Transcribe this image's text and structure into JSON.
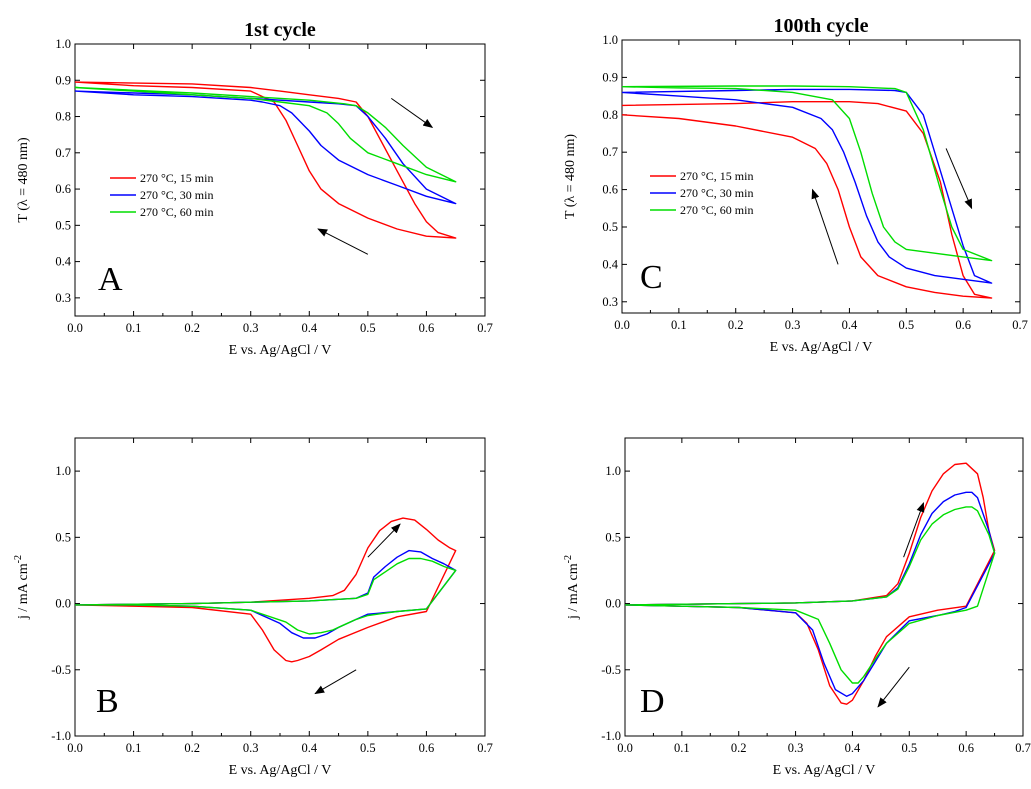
{
  "chart_data": [
    {
      "id": "A",
      "type": "line",
      "title": "1st cycle",
      "panel_label": "A",
      "xlabel": "E vs. Ag/AgCl / V",
      "ylabel": "T (λ = 480 nm)",
      "xlim": [
        0.0,
        0.7
      ],
      "ylim": [
        0.25,
        1.0
      ],
      "xticks": [
        "0.0",
        "0.1",
        "0.2",
        "0.3",
        "0.4",
        "0.5",
        "0.6",
        "0.7"
      ],
      "yticks": [
        "0.3",
        "0.4",
        "0.5",
        "0.6",
        "0.7",
        "0.8",
        "0.9",
        "1.0"
      ],
      "legend_position": "middle-left",
      "series": [
        {
          "name": "270 °C, 15 min",
          "color": "#ff0000",
          "x": [
            0.0,
            0.2,
            0.3,
            0.35,
            0.4,
            0.45,
            0.48,
            0.5,
            0.52,
            0.55,
            0.58,
            0.6,
            0.62,
            0.65,
            0.6,
            0.55,
            0.5,
            0.45,
            0.42,
            0.4,
            0.38,
            0.36,
            0.34,
            0.3,
            0.2,
            0.1,
            0.0
          ],
          "y": [
            0.895,
            0.89,
            0.88,
            0.87,
            0.86,
            0.85,
            0.84,
            0.8,
            0.74,
            0.65,
            0.56,
            0.51,
            0.48,
            0.465,
            0.47,
            0.49,
            0.52,
            0.56,
            0.6,
            0.65,
            0.72,
            0.79,
            0.84,
            0.87,
            0.88,
            0.885,
            0.895
          ]
        },
        {
          "name": "270 °C, 30 min",
          "color": "#0000ff",
          "x": [
            0.0,
            0.2,
            0.3,
            0.4,
            0.45,
            0.48,
            0.5,
            0.53,
            0.56,
            0.6,
            0.65,
            0.6,
            0.55,
            0.5,
            0.45,
            0.42,
            0.4,
            0.37,
            0.35,
            0.32,
            0.3,
            0.2,
            0.1,
            0.0
          ],
          "y": [
            0.87,
            0.86,
            0.85,
            0.84,
            0.835,
            0.83,
            0.8,
            0.74,
            0.67,
            0.6,
            0.56,
            0.58,
            0.61,
            0.64,
            0.68,
            0.72,
            0.76,
            0.81,
            0.83,
            0.84,
            0.845,
            0.855,
            0.86,
            0.87
          ]
        },
        {
          "name": "270 °C, 60 min",
          "color": "#00dd00",
          "x": [
            0.0,
            0.2,
            0.3,
            0.4,
            0.46,
            0.48,
            0.5,
            0.53,
            0.56,
            0.6,
            0.65,
            0.6,
            0.55,
            0.5,
            0.47,
            0.45,
            0.43,
            0.4,
            0.35,
            0.3,
            0.2,
            0.1,
            0.0
          ],
          "y": [
            0.88,
            0.865,
            0.855,
            0.845,
            0.835,
            0.83,
            0.81,
            0.77,
            0.72,
            0.66,
            0.62,
            0.64,
            0.67,
            0.7,
            0.74,
            0.78,
            0.81,
            0.83,
            0.84,
            0.85,
            0.86,
            0.87,
            0.88
          ]
        }
      ],
      "arrows": [
        {
          "from": [
            0.54,
            0.85
          ],
          "to": [
            0.61,
            0.77
          ]
        },
        {
          "from": [
            0.5,
            0.42
          ],
          "to": [
            0.415,
            0.49
          ]
        }
      ]
    },
    {
      "id": "C",
      "type": "line",
      "title": "100th cycle",
      "panel_label": "C",
      "xlabel": "E vs. Ag/AgCl / V",
      "ylabel": "T (λ = 480 nm)",
      "xlim": [
        0.0,
        0.7
      ],
      "ylim": [
        0.27,
        1.0
      ],
      "xticks": [
        "0.0",
        "0.1",
        "0.2",
        "0.3",
        "0.4",
        "0.5",
        "0.6",
        "0.7"
      ],
      "yticks": [
        "0.3",
        "0.4",
        "0.5",
        "0.6",
        "0.7",
        "0.8",
        "0.9",
        "1.0"
      ],
      "legend_position": "middle-left",
      "series": [
        {
          "name": "270 °C, 15 min",
          "color": "#ff0000",
          "x": [
            0.0,
            0.2,
            0.3,
            0.4,
            0.45,
            0.5,
            0.53,
            0.56,
            0.58,
            0.6,
            0.62,
            0.65,
            0.6,
            0.55,
            0.5,
            0.45,
            0.42,
            0.4,
            0.38,
            0.36,
            0.34,
            0.3,
            0.2,
            0.1,
            0.0
          ],
          "y": [
            0.825,
            0.83,
            0.835,
            0.835,
            0.83,
            0.81,
            0.75,
            0.62,
            0.48,
            0.37,
            0.32,
            0.31,
            0.315,
            0.325,
            0.34,
            0.37,
            0.42,
            0.5,
            0.6,
            0.67,
            0.71,
            0.74,
            0.77,
            0.79,
            0.8
          ]
        },
        {
          "name": "270 °C, 30 min",
          "color": "#0000ff",
          "x": [
            0.0,
            0.2,
            0.3,
            0.4,
            0.48,
            0.5,
            0.53,
            0.56,
            0.6,
            0.62,
            0.65,
            0.6,
            0.55,
            0.5,
            0.47,
            0.45,
            0.43,
            0.41,
            0.39,
            0.37,
            0.35,
            0.3,
            0.2,
            0.1,
            0.0
          ],
          "y": [
            0.86,
            0.865,
            0.868,
            0.868,
            0.865,
            0.86,
            0.8,
            0.65,
            0.45,
            0.37,
            0.35,
            0.36,
            0.37,
            0.39,
            0.42,
            0.46,
            0.53,
            0.62,
            0.7,
            0.76,
            0.79,
            0.82,
            0.84,
            0.85,
            0.86
          ]
        },
        {
          "name": "270 °C, 60 min",
          "color": "#00dd00",
          "x": [
            0.0,
            0.2,
            0.3,
            0.4,
            0.48,
            0.5,
            0.53,
            0.56,
            0.58,
            0.6,
            0.65,
            0.6,
            0.55,
            0.5,
            0.48,
            0.46,
            0.44,
            0.42,
            0.4,
            0.37,
            0.3,
            0.2,
            0.1,
            0.0
          ],
          "y": [
            0.875,
            0.877,
            0.877,
            0.875,
            0.87,
            0.86,
            0.76,
            0.6,
            0.5,
            0.44,
            0.41,
            0.42,
            0.43,
            0.44,
            0.46,
            0.5,
            0.59,
            0.7,
            0.79,
            0.84,
            0.86,
            0.87,
            0.872,
            0.875
          ]
        }
      ],
      "arrows": [
        {
          "from": [
            0.38,
            0.4
          ],
          "to": [
            0.335,
            0.6
          ]
        },
        {
          "from": [
            0.57,
            0.71
          ],
          "to": [
            0.615,
            0.55
          ]
        }
      ]
    },
    {
      "id": "B",
      "type": "line",
      "title": "",
      "panel_label": "B",
      "xlabel": "E vs. Ag/AgCl / V",
      "ylabel": "j / mA cm-2",
      "xlim": [
        0.0,
        0.7
      ],
      "ylim": [
        -1.0,
        1.25
      ],
      "xticks": [
        "0.0",
        "0.1",
        "0.2",
        "0.3",
        "0.4",
        "0.5",
        "0.6",
        "0.7"
      ],
      "yticks": [
        "-1.0",
        "-0.5",
        "0.0",
        "0.5",
        "1.0"
      ],
      "series": [
        {
          "name": "270 °C, 15 min",
          "color": "#ff0000",
          "x": [
            0.0,
            0.2,
            0.3,
            0.4,
            0.44,
            0.46,
            0.48,
            0.5,
            0.52,
            0.54,
            0.56,
            0.58,
            0.6,
            0.62,
            0.64,
            0.65,
            0.6,
            0.55,
            0.5,
            0.45,
            0.42,
            0.4,
            0.38,
            0.37,
            0.36,
            0.34,
            0.32,
            0.3,
            0.2,
            0.1,
            0.0
          ],
          "y": [
            -0.01,
            0.0,
            0.01,
            0.04,
            0.06,
            0.1,
            0.22,
            0.42,
            0.55,
            0.62,
            0.645,
            0.63,
            0.56,
            0.48,
            0.42,
            0.4,
            -0.06,
            -0.1,
            -0.18,
            -0.27,
            -0.35,
            -0.4,
            -0.43,
            -0.44,
            -0.43,
            -0.35,
            -0.2,
            -0.08,
            -0.03,
            -0.02,
            -0.01
          ]
        },
        {
          "name": "270 °C, 30 min",
          "color": "#0000ff",
          "x": [
            0.0,
            0.2,
            0.3,
            0.4,
            0.48,
            0.5,
            0.51,
            0.53,
            0.55,
            0.57,
            0.59,
            0.61,
            0.63,
            0.65,
            0.6,
            0.55,
            0.5,
            0.48,
            0.45,
            0.43,
            0.41,
            0.39,
            0.37,
            0.35,
            0.3,
            0.2,
            0.1,
            0.0
          ],
          "y": [
            -0.01,
            0.0,
            0.01,
            0.02,
            0.04,
            0.08,
            0.2,
            0.28,
            0.35,
            0.4,
            0.39,
            0.34,
            0.3,
            0.25,
            -0.04,
            -0.06,
            -0.08,
            -0.12,
            -0.18,
            -0.23,
            -0.26,
            -0.26,
            -0.22,
            -0.15,
            -0.05,
            -0.02,
            -0.01,
            -0.01
          ]
        },
        {
          "name": "270 °C, 60 min",
          "color": "#00dd00",
          "x": [
            0.0,
            0.2,
            0.3,
            0.4,
            0.48,
            0.5,
            0.51,
            0.53,
            0.55,
            0.57,
            0.59,
            0.61,
            0.63,
            0.65,
            0.6,
            0.55,
            0.5,
            0.48,
            0.46,
            0.44,
            0.42,
            0.4,
            0.38,
            0.36,
            0.3,
            0.2,
            0.1,
            0.0
          ],
          "y": [
            -0.01,
            0.0,
            0.01,
            0.02,
            0.04,
            0.07,
            0.18,
            0.24,
            0.3,
            0.34,
            0.34,
            0.32,
            0.28,
            0.25,
            -0.04,
            -0.06,
            -0.09,
            -0.12,
            -0.16,
            -0.2,
            -0.22,
            -0.23,
            -0.2,
            -0.14,
            -0.05,
            -0.02,
            -0.01,
            -0.01
          ]
        }
      ],
      "arrows": [
        {
          "from": [
            0.5,
            0.35
          ],
          "to": [
            0.555,
            0.6
          ]
        },
        {
          "from": [
            0.48,
            -0.5
          ],
          "to": [
            0.41,
            -0.68
          ]
        }
      ]
    },
    {
      "id": "D",
      "type": "line",
      "title": "",
      "panel_label": "D",
      "xlabel": "E vs. Ag/AgCl / V",
      "ylabel": "j / mA cm-2",
      "xlim": [
        0.0,
        0.7
      ],
      "ylim": [
        -1.0,
        1.25
      ],
      "xticks": [
        "0.0",
        "0.1",
        "0.2",
        "0.3",
        "0.4",
        "0.5",
        "0.6",
        "0.7"
      ],
      "yticks": [
        "-1.0",
        "-0.5",
        "0.0",
        "0.5",
        "1.0"
      ],
      "series": [
        {
          "name": "270 °C, 15 min",
          "color": "#ff0000",
          "x": [
            0.0,
            0.2,
            0.3,
            0.4,
            0.46,
            0.48,
            0.5,
            0.52,
            0.54,
            0.56,
            0.58,
            0.6,
            0.62,
            0.63,
            0.64,
            0.65,
            0.6,
            0.55,
            0.5,
            0.46,
            0.44,
            0.42,
            0.4,
            0.39,
            0.38,
            0.36,
            0.34,
            0.32,
            0.3,
            0.2,
            0.1,
            0.0
          ],
          "y": [
            -0.01,
            0.0,
            0.005,
            0.02,
            0.06,
            0.15,
            0.38,
            0.65,
            0.85,
            0.98,
            1.05,
            1.06,
            0.98,
            0.8,
            0.55,
            0.4,
            -0.02,
            -0.05,
            -0.1,
            -0.25,
            -0.4,
            -0.58,
            -0.73,
            -0.76,
            -0.75,
            -0.62,
            -0.35,
            -0.15,
            -0.07,
            -0.03,
            -0.02,
            -0.01
          ]
        },
        {
          "name": "270 °C, 30 min",
          "color": "#0000ff",
          "x": [
            0.0,
            0.2,
            0.3,
            0.4,
            0.46,
            0.48,
            0.5,
            0.52,
            0.54,
            0.56,
            0.58,
            0.6,
            0.61,
            0.62,
            0.64,
            0.65,
            0.6,
            0.58,
            0.55,
            0.5,
            0.46,
            0.44,
            0.42,
            0.4,
            0.39,
            0.37,
            0.35,
            0.33,
            0.3,
            0.2,
            0.1,
            0.0
          ],
          "y": [
            -0.01,
            0.0,
            0.005,
            0.02,
            0.05,
            0.12,
            0.3,
            0.52,
            0.68,
            0.77,
            0.82,
            0.84,
            0.84,
            0.8,
            0.55,
            0.38,
            -0.03,
            -0.06,
            -0.09,
            -0.13,
            -0.3,
            -0.44,
            -0.58,
            -0.68,
            -0.7,
            -0.65,
            -0.45,
            -0.2,
            -0.07,
            -0.03,
            -0.02,
            -0.01
          ]
        },
        {
          "name": "270 °C, 60 min",
          "color": "#00dd00",
          "x": [
            0.0,
            0.2,
            0.3,
            0.4,
            0.46,
            0.48,
            0.5,
            0.52,
            0.54,
            0.56,
            0.58,
            0.6,
            0.61,
            0.62,
            0.64,
            0.65,
            0.62,
            0.6,
            0.55,
            0.5,
            0.46,
            0.44,
            0.42,
            0.41,
            0.4,
            0.38,
            0.36,
            0.34,
            0.3,
            0.2,
            0.1,
            0.0
          ],
          "y": [
            -0.01,
            0.0,
            0.005,
            0.02,
            0.05,
            0.11,
            0.28,
            0.48,
            0.6,
            0.67,
            0.71,
            0.73,
            0.73,
            0.7,
            0.52,
            0.38,
            -0.02,
            -0.05,
            -0.09,
            -0.15,
            -0.3,
            -0.42,
            -0.55,
            -0.6,
            -0.6,
            -0.5,
            -0.3,
            -0.12,
            -0.05,
            -0.03,
            -0.02,
            -0.01
          ]
        }
      ],
      "arrows": [
        {
          "from": [
            0.49,
            0.35
          ],
          "to": [
            0.525,
            0.76
          ]
        },
        {
          "from": [
            0.5,
            -0.48
          ],
          "to": [
            0.445,
            -0.78
          ]
        }
      ]
    }
  ]
}
